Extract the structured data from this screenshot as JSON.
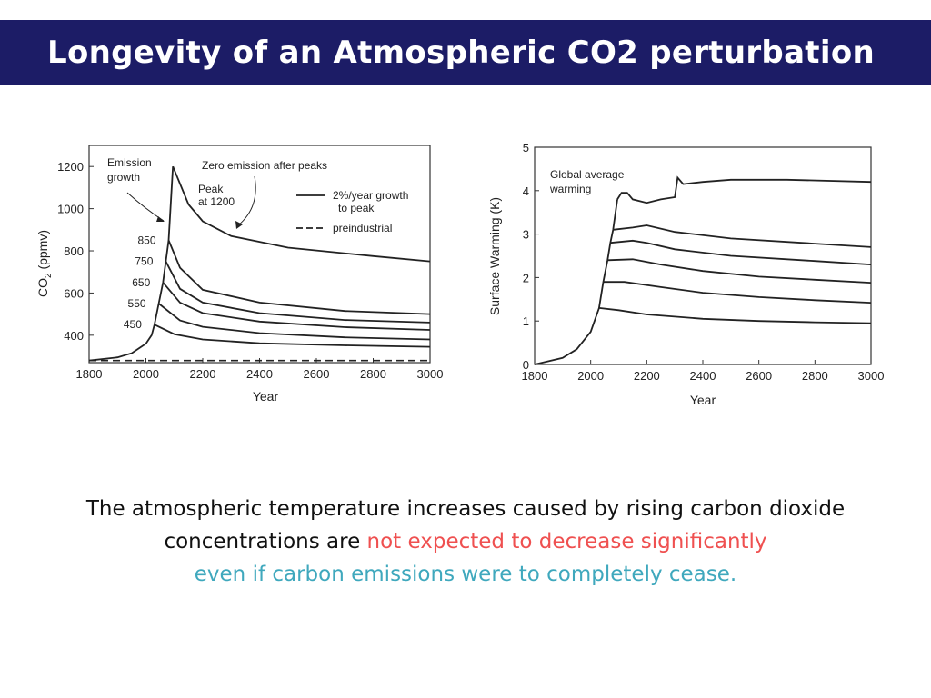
{
  "slide": {
    "title": "Longevity of an Atmospheric CO2 perturbation",
    "caption_part1": "The atmospheric temperature increases caused by rising carbon dioxide concentrations are ",
    "caption_highlight_red": "not expected to decrease significantly",
    "caption_highlight_teal": "even if carbon emissions were to completely cease.",
    "colors": {
      "title_bg": "#1c1c66",
      "red": "#ef5050",
      "teal": "#3fa8bd"
    }
  },
  "chart_data": [
    {
      "type": "line",
      "xlabel": "Year",
      "ylabel": "CO2 (ppmv)",
      "xlim": [
        1800,
        3000
      ],
      "ylim": [
        270,
        1300
      ],
      "xticks": [
        1800,
        2000,
        2200,
        2400,
        2600,
        2800,
        3000
      ],
      "yticks": [
        400,
        600,
        800,
        1000,
        1200
      ],
      "annotations": [
        "Emission growth",
        "Zero emission after peaks",
        "Peak at 1200"
      ],
      "legend": [
        {
          "label": "2%/year growth to peak",
          "style": "solid"
        },
        {
          "label": "preindustrial",
          "style": "dashed"
        }
      ],
      "legend_position": "top-right",
      "series": [
        {
          "name": "1200",
          "peak_year": 2095,
          "points": [
            [
              2095,
              1200
            ],
            [
              2150,
              1020
            ],
            [
              2200,
              940
            ],
            [
              2300,
              870
            ],
            [
              2500,
              815
            ],
            [
              2800,
              775
            ],
            [
              3000,
              750
            ]
          ]
        },
        {
          "name": "850",
          "peak_year": 2080,
          "points": [
            [
              2080,
              850
            ],
            [
              2120,
              720
            ],
            [
              2200,
              615
            ],
            [
              2400,
              555
            ],
            [
              2700,
              515
            ],
            [
              3000,
              500
            ]
          ]
        },
        {
          "name": "750",
          "peak_year": 2070,
          "points": [
            [
              2070,
              750
            ],
            [
              2120,
              620
            ],
            [
              2200,
              555
            ],
            [
              2400,
              505
            ],
            [
              2700,
              472
            ],
            [
              3000,
              460
            ]
          ]
        },
        {
          "name": "650",
          "peak_year": 2060,
          "points": [
            [
              2060,
              650
            ],
            [
              2120,
              555
            ],
            [
              2200,
              505
            ],
            [
              2400,
              465
            ],
            [
              2700,
              438
            ],
            [
              3000,
              425
            ]
          ]
        },
        {
          "name": "550",
          "peak_year": 2045,
          "points": [
            [
              2045,
              550
            ],
            [
              2120,
              470
            ],
            [
              2200,
              440
            ],
            [
              2400,
              410
            ],
            [
              2700,
              390
            ],
            [
              3000,
              380
            ]
          ]
        },
        {
          "name": "450",
          "peak_year": 2030,
          "points": [
            [
              2030,
              450
            ],
            [
              2100,
              405
            ],
            [
              2200,
              380
            ],
            [
              2400,
              362
            ],
            [
              2700,
              352
            ],
            [
              3000,
              345
            ]
          ]
        }
      ],
      "growth_curve": [
        [
          1800,
          280
        ],
        [
          1900,
          295
        ],
        [
          1950,
          315
        ],
        [
          2000,
          360
        ],
        [
          2020,
          400
        ],
        [
          2030,
          450
        ],
        [
          2045,
          550
        ],
        [
          2060,
          650
        ],
        [
          2070,
          750
        ],
        [
          2080,
          850
        ],
        [
          2095,
          1200
        ]
      ],
      "preindustrial": 280
    },
    {
      "type": "line",
      "xlabel": "Year",
      "ylabel": "Surface Warming (K)",
      "xlim": [
        1800,
        3000
      ],
      "ylim": [
        0,
        5
      ],
      "xticks": [
        1800,
        2000,
        2200,
        2400,
        2600,
        2800,
        3000
      ],
      "yticks": [
        0,
        1,
        2,
        3,
        4,
        5
      ],
      "annotations": [
        "Global average warming"
      ],
      "growth_curve": [
        [
          1800,
          0
        ],
        [
          1900,
          0.15
        ],
        [
          1950,
          0.35
        ],
        [
          2000,
          0.75
        ],
        [
          2030,
          1.3
        ],
        [
          2045,
          1.9
        ],
        [
          2060,
          2.4
        ],
        [
          2070,
          2.8
        ],
        [
          2080,
          3.1
        ],
        [
          2095,
          3.8
        ]
      ],
      "series": [
        {
          "name": "1200",
          "points": [
            [
              2095,
              3.8
            ],
            [
              2110,
              3.95
            ],
            [
              2130,
              3.95
            ],
            [
              2150,
              3.8
            ],
            [
              2200,
              3.72
            ],
            [
              2250,
              3.8
            ],
            [
              2300,
              3.85
            ],
            [
              2310,
              4.3
            ],
            [
              2330,
              4.15
            ],
            [
              2400,
              4.2
            ],
            [
              2500,
              4.25
            ],
            [
              2700,
              4.25
            ],
            [
              3000,
              4.2
            ]
          ]
        },
        {
          "name": "850",
          "points": [
            [
              2080,
              3.1
            ],
            [
              2150,
              3.15
            ],
            [
              2200,
              3.2
            ],
            [
              2300,
              3.05
            ],
            [
              2500,
              2.9
            ],
            [
              2800,
              2.78
            ],
            [
              3000,
              2.7
            ]
          ]
        },
        {
          "name": "750",
          "points": [
            [
              2070,
              2.8
            ],
            [
              2150,
              2.85
            ],
            [
              2200,
              2.8
            ],
            [
              2300,
              2.65
            ],
            [
              2500,
              2.5
            ],
            [
              2800,
              2.38
            ],
            [
              3000,
              2.3
            ]
          ]
        },
        {
          "name": "650",
          "points": [
            [
              2060,
              2.4
            ],
            [
              2150,
              2.42
            ],
            [
              2250,
              2.3
            ],
            [
              2400,
              2.15
            ],
            [
              2600,
              2.02
            ],
            [
              2800,
              1.95
            ],
            [
              3000,
              1.88
            ]
          ]
        },
        {
          "name": "550",
          "points": [
            [
              2045,
              1.9
            ],
            [
              2120,
              1.9
            ],
            [
              2250,
              1.78
            ],
            [
              2400,
              1.65
            ],
            [
              2600,
              1.55
            ],
            [
              2800,
              1.48
            ],
            [
              3000,
              1.42
            ]
          ]
        },
        {
          "name": "450",
          "points": [
            [
              2030,
              1.3
            ],
            [
              2100,
              1.25
            ],
            [
              2200,
              1.15
            ],
            [
              2400,
              1.05
            ],
            [
              2600,
              1.0
            ],
            [
              2800,
              0.97
            ],
            [
              3000,
              0.95
            ]
          ]
        }
      ]
    }
  ]
}
